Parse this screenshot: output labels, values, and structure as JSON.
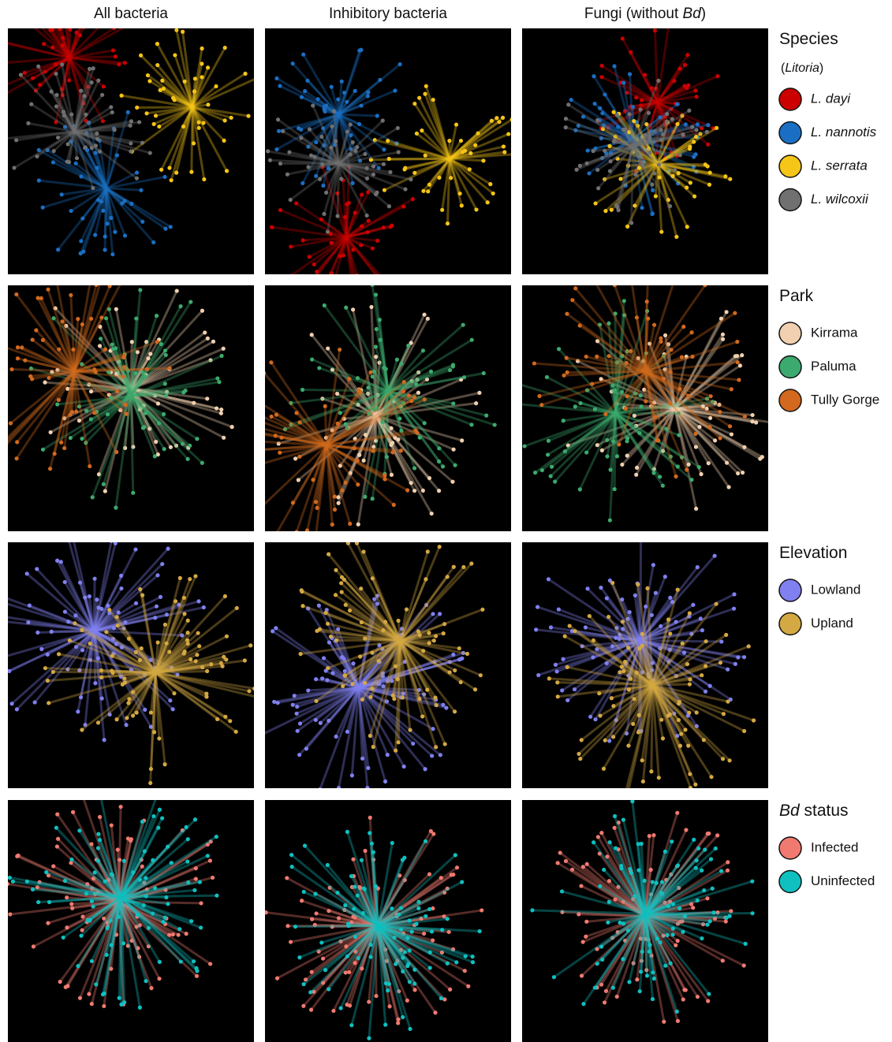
{
  "columns": [
    [
      {
        "text": "All bacteria"
      }
    ],
    [
      {
        "text": "Inhibitory bacteria"
      }
    ],
    [
      {
        "text": "Fungi (without "
      },
      {
        "text": "Bd",
        "italic": true
      },
      {
        "text": ")"
      }
    ]
  ],
  "rows": [
    {
      "title": [
        {
          "text": "Species"
        }
      ],
      "subtitle": [
        {
          "text": "("
        },
        {
          "text": "Litoria",
          "italic": true
        },
        {
          "text": ")"
        }
      ],
      "items": [
        {
          "label": "L. dayi",
          "italic": true,
          "color": "#cc0000"
        },
        {
          "label": "L. nannotis",
          "italic": true,
          "color": "#1a6fc4"
        },
        {
          "label": "L. serrata",
          "italic": true,
          "color": "#f5c518"
        },
        {
          "label": "L. wilcoxii",
          "italic": true,
          "color": "#707070"
        }
      ]
    },
    {
      "title": [
        {
          "text": "Park"
        }
      ],
      "items": [
        {
          "label": "Kirrama",
          "color": "#f0d0b0"
        },
        {
          "label": "Paluma",
          "color": "#3caa6e"
        },
        {
          "label": "Tully Gorge",
          "color": "#d2691e"
        }
      ]
    },
    {
      "title": [
        {
          "text": "Elevation"
        }
      ],
      "items": [
        {
          "label": "Lowland",
          "color": "#8080f0"
        },
        {
          "label": "Upland",
          "color": "#d4a843"
        }
      ]
    },
    {
      "title": [
        {
          "text": "Bd",
          "italic": true
        },
        {
          "text": " status"
        }
      ],
      "items": [
        {
          "label": "Infected",
          "color": "#f07a70"
        },
        {
          "label": "Uninfected",
          "color": "#10c0c0"
        }
      ]
    }
  ]
}
